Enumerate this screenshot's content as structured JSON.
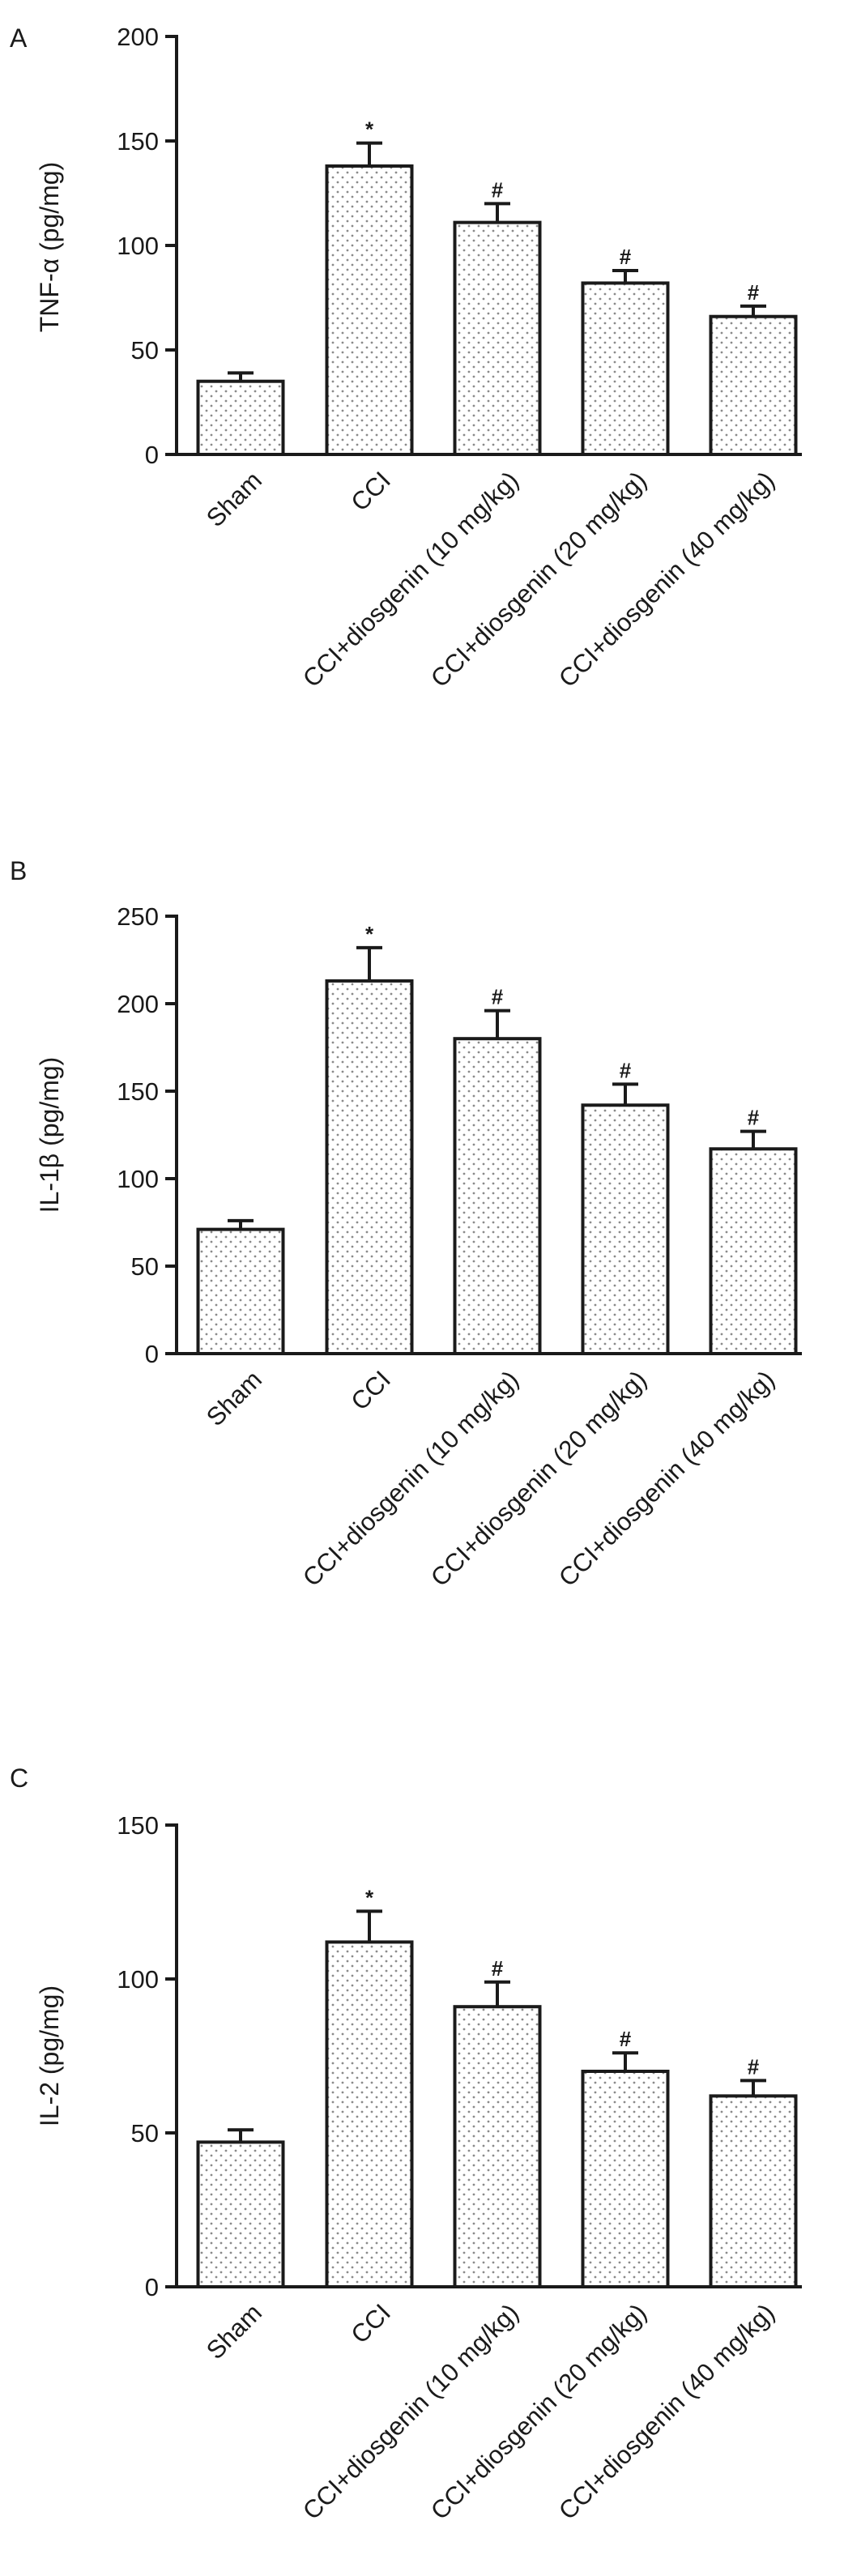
{
  "figure": {
    "colors": {
      "axis": "#1a1a1a",
      "bar_edge": "#1a1a1a",
      "bar_fill": "#ffffff",
      "dot": "#8a8a8a"
    }
  },
  "chart_data": [
    {
      "type": "bar",
      "panel_label": "A",
      "ylabel": "TNF-α (pg/mg)",
      "ylim": [
        0,
        200
      ],
      "yticks": [
        "0",
        "50",
        "100",
        "150",
        "200"
      ],
      "categories": [
        "Sham",
        "CCI",
        "CCI+diosgenin (10 mg/kg)",
        "CCI+diosgenin (20 mg/kg)",
        "CCI+diosgenin (40 mg/kg)"
      ],
      "values": [
        35,
        138,
        111,
        82,
        66
      ],
      "errors": [
        4,
        11,
        9,
        6,
        5
      ],
      "markers": [
        "",
        "*",
        "#",
        "#",
        "#"
      ],
      "grid": false,
      "fill": "dotted"
    },
    {
      "type": "bar",
      "panel_label": "B",
      "ylabel": "IL-1β (pg/mg)",
      "ylim": [
        0,
        250
      ],
      "yticks": [
        "0",
        "50",
        "100",
        "150",
        "200",
        "250"
      ],
      "categories": [
        "Sham",
        "CCI",
        "CCI+diosgenin (10 mg/kg)",
        "CCI+diosgenin (20 mg/kg)",
        "CCI+diosgenin (40 mg/kg)"
      ],
      "values": [
        71,
        213,
        180,
        142,
        117
      ],
      "errors": [
        5,
        19,
        16,
        12,
        10
      ],
      "markers": [
        "",
        "*",
        "#",
        "#",
        "#"
      ],
      "grid": false,
      "fill": "dotted"
    },
    {
      "type": "bar",
      "panel_label": "C",
      "ylabel": "IL-2 (pg/mg)",
      "ylim": [
        0,
        150
      ],
      "yticks": [
        "0",
        "50",
        "100",
        "150"
      ],
      "categories": [
        "Sham",
        "CCI",
        "CCI+diosgenin (10 mg/kg)",
        "CCI+diosgenin (20 mg/kg)",
        "CCI+diosgenin (40 mg/kg)"
      ],
      "values": [
        47,
        112,
        91,
        70,
        62
      ],
      "errors": [
        4,
        10,
        8,
        6,
        5
      ],
      "markers": [
        "",
        "*",
        "#",
        "#",
        "#"
      ],
      "grid": false,
      "fill": "dotted"
    }
  ]
}
